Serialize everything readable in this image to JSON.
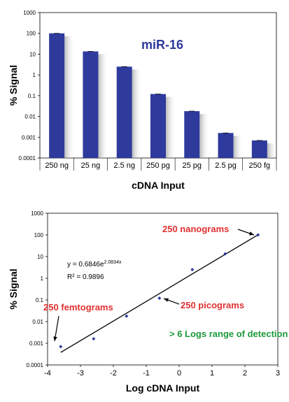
{
  "chart_data": [
    {
      "type": "bar",
      "title": "miR-16",
      "xlabel": "cDNA Input",
      "ylabel": "% Signal",
      "yscale": "log",
      "ylim": [
        0.0001,
        1000
      ],
      "yticks": [
        "1000",
        "100",
        "10",
        "1",
        "0.1",
        "0.01",
        "0.001",
        "0.0001"
      ],
      "categories": [
        "250 ng",
        "25 ng",
        "2.5 ng",
        "250 pg",
        "25 pg",
        "2.5 pg",
        "250 fg"
      ],
      "values": [
        100,
        13.5,
        2.5,
        0.12,
        0.018,
        0.0016,
        0.0007
      ],
      "bar_color": "#2e3a9c",
      "grid": false
    },
    {
      "type": "scatter",
      "xlabel": "Log cDNA Input",
      "ylabel": "% Signal",
      "yscale": "log",
      "xlim": [
        -4,
        3
      ],
      "ylim": [
        0.0001,
        1000
      ],
      "xticks": [
        "-4",
        "-3",
        "-2",
        "-1",
        "0",
        "1",
        "2",
        "3"
      ],
      "yticks": [
        "1000",
        "100",
        "10",
        "1",
        "0.1",
        "0.01",
        "0.001",
        "0.0001"
      ],
      "x": [
        -3.6,
        -2.6,
        -1.6,
        -0.6,
        0.4,
        1.4,
        2.4
      ],
      "y": [
        0.0007,
        0.0016,
        0.018,
        0.12,
        2.5,
        13.5,
        100
      ],
      "point_color": "#2e3a9c",
      "trendline": {
        "type": "exponential",
        "a": 0.6846,
        "b": 2.0834
      },
      "equation_text": "y = 0.6846e",
      "equation_exp": "2.0834x",
      "r2_text": "R² = 0.9896",
      "annotations": [
        "250 nanograms",
        "250 picograms",
        "250 femtograms",
        "> 6 Logs range of detection"
      ],
      "grid": false
    }
  ]
}
